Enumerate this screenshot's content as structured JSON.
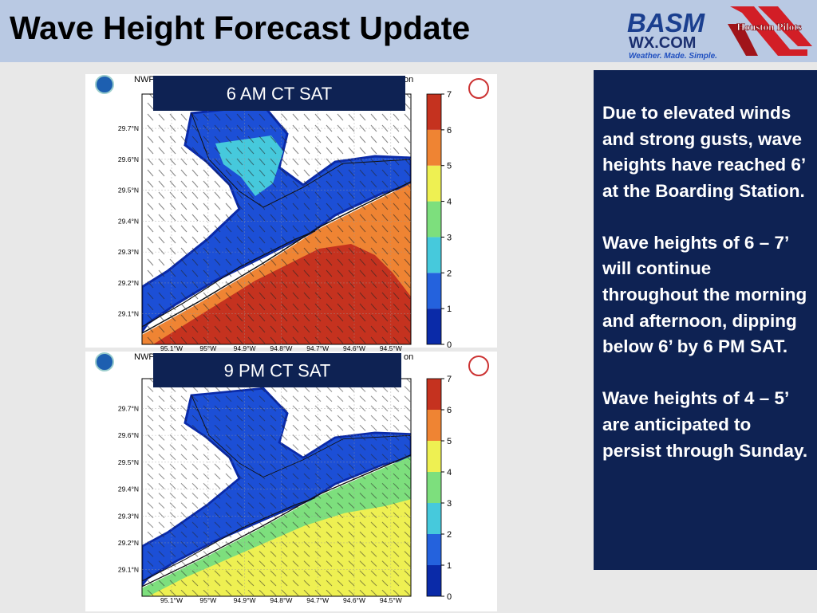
{
  "header": {
    "title": "Wave Height Forecast Update",
    "logo_left": {
      "name": "BASM",
      "site": "WX.COM",
      "tagline": "Weather. Made. Simple."
    },
    "logo_right": "Houston Pilots"
  },
  "panels": [
    {
      "label": "6 AM CT SAT",
      "title_left": "NWP",
      "title_right": "on",
      "lat_labels": [
        "29.7°N",
        "29.6°N",
        "29.5°N",
        "29.4°N",
        "29.3°N",
        "29.2°N",
        "29.1°N"
      ],
      "lon_labels": [
        "95.1°W",
        "95°W",
        "94.9°W",
        "94.8°W",
        "94.7°W",
        "94.6°W",
        "94.5°W"
      ],
      "colorbar_ticks": [
        "0",
        "1",
        "2",
        "3",
        "4",
        "5",
        "6",
        "7"
      ]
    },
    {
      "label": "9 PM CT SAT",
      "title_left": "NWP",
      "title_right": "on",
      "lat_labels": [
        "29.7°N",
        "29.6°N",
        "29.5°N",
        "29.4°N",
        "29.3°N",
        "29.2°N",
        "29.1°N"
      ],
      "lon_labels": [
        "95.1°W",
        "95°W",
        "94.9°W",
        "94.8°W",
        "94.7°W",
        "94.6°W",
        "94.5°W"
      ],
      "colorbar_ticks": [
        "0",
        "1",
        "2",
        "3",
        "4",
        "5",
        "6",
        "7"
      ]
    }
  ],
  "sidebar": {
    "paragraphs": [
      "Due to elevated winds and strong gusts, wave heights have reached 6’ at the Boarding Station.",
      "Wave heights of 6 – 7’ will continue throughout the morning and afternoon, dipping below 6’ by 6 PM SAT.",
      "Wave heights of 4 – 5’ are anticipated to persist through Sunday."
    ]
  }
}
